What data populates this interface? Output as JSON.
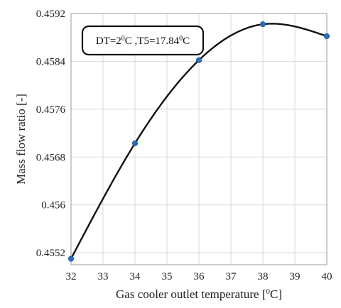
{
  "chart_data": {
    "type": "line",
    "xlabel_main": "Gas cooler outlet temperature [",
    "xlabel_sup": "0",
    "xlabel_end": "C]",
    "ylabel": "Mass flow ratio [-]",
    "xlim": [
      32,
      40
    ],
    "ylim": [
      0.455,
      0.4592
    ],
    "xticks": [
      32,
      33,
      34,
      35,
      36,
      37,
      38,
      39,
      40
    ],
    "yticks": [
      0.4552,
      0.456,
      0.4568,
      0.4576,
      0.4584,
      0.4592
    ],
    "ytick_labels": [
      "0.4552",
      "0.456",
      "0.4568",
      "0.4576",
      "0.4584",
      "0.4592"
    ],
    "grid": true,
    "series": [
      {
        "x": [
          32,
          34,
          36,
          38,
          40
        ],
        "y": [
          0.4551,
          0.45703,
          0.45842,
          0.45902,
          0.45882
        ],
        "line_color": "#111111",
        "marker_color": "#1f6fd1"
      }
    ],
    "annotation": {
      "parts": [
        {
          "text": "DT=2",
          "sup": false
        },
        {
          "text": "0",
          "sup": true
        },
        {
          "text": "C ,T5=17.84",
          "sup": false
        },
        {
          "text": "0",
          "sup": true
        },
        {
          "text": "C",
          "sup": false
        }
      ]
    }
  }
}
